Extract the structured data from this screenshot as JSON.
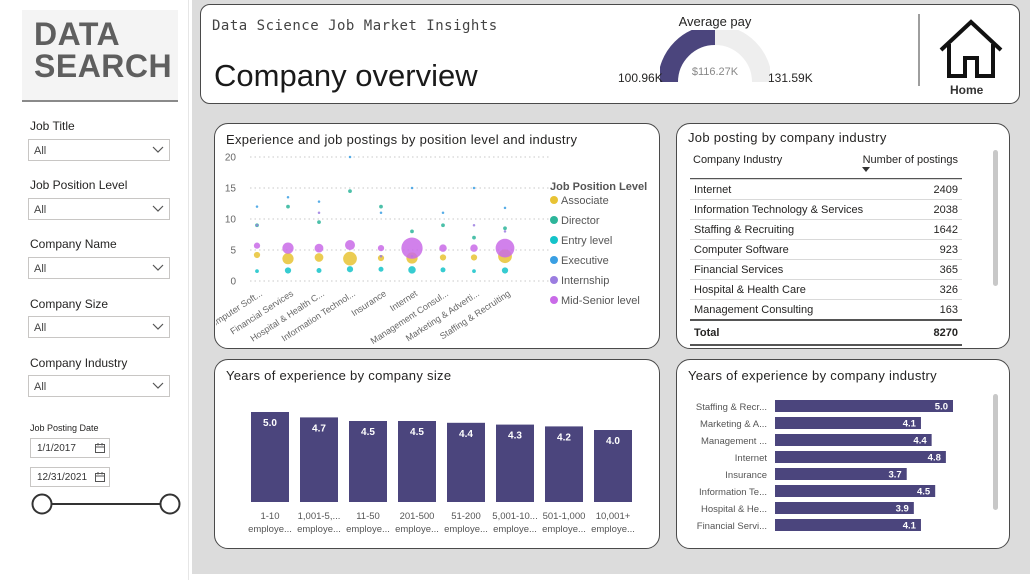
{
  "logo": {
    "line1": "DATA",
    "line2": "SEARCH"
  },
  "filters": [
    {
      "label": "Job Title",
      "value": "All"
    },
    {
      "label": "Job Position Level",
      "value": "All"
    },
    {
      "label": "Company Name",
      "value": "All"
    },
    {
      "label": "Company Size",
      "value": "All"
    },
    {
      "label": "Company Industry",
      "value": "All"
    }
  ],
  "date_filter": {
    "label": "Job Posting Date",
    "start": "1/1/2017",
    "end": "12/31/2021"
  },
  "header": {
    "subtitle": "Data Science Job Market Insights",
    "title": "Company overview",
    "gauge": {
      "label": "Average pay",
      "min": "100.96K",
      "max": "131.59K",
      "value": "$116.27K",
      "fraction": 0.5
    },
    "home_label": "Home"
  },
  "scatter": {
    "title": "Experience and job postings by position level and industry",
    "legend_title": "Job Position Level",
    "chart_data": {
      "type": "scatter",
      "categories": [
        "Computer Soft...",
        "Financial Services",
        "Hospital & Health C...",
        "Information Technol...",
        "Insurance",
        "Internet",
        "Management Consul...",
        "Marketing & Adverti...",
        "Staffing & Recruiting"
      ],
      "y_ticks": [
        "0",
        "5",
        "10",
        "15",
        "20"
      ],
      "ylim": [
        0,
        20
      ],
      "series": [
        {
          "name": "Associate",
          "color": "#E8C334",
          "points": [
            [
              0,
              4.2,
              5
            ],
            [
              1,
              3.6,
              9
            ],
            [
              2,
              3.8,
              7
            ],
            [
              3,
              3.6,
              11
            ],
            [
              4,
              3.7,
              5
            ],
            [
              5,
              3.7,
              9
            ],
            [
              6,
              3.8,
              5
            ],
            [
              7,
              3.8,
              5
            ],
            [
              8,
              4.0,
              11
            ]
          ]
        },
        {
          "name": "Director",
          "color": "#2DB59A",
          "points": [
            [
              0,
              9.0,
              3
            ],
            [
              1,
              12.0,
              3
            ],
            [
              2,
              9.5,
              3
            ],
            [
              3,
              14.5,
              3
            ],
            [
              4,
              12.0,
              3
            ],
            [
              5,
              8.0,
              3
            ],
            [
              6,
              9.0,
              3
            ],
            [
              7,
              7.0,
              3
            ],
            [
              8,
              8.5,
              3
            ]
          ]
        },
        {
          "name": "Entry level",
          "color": "#14C3C9",
          "points": [
            [
              0,
              1.6,
              3
            ],
            [
              1,
              1.7,
              5
            ],
            [
              2,
              1.7,
              4
            ],
            [
              3,
              1.9,
              5
            ],
            [
              4,
              1.9,
              4
            ],
            [
              5,
              1.8,
              6
            ],
            [
              6,
              1.8,
              4
            ],
            [
              7,
              1.6,
              3
            ],
            [
              8,
              1.7,
              5
            ]
          ]
        },
        {
          "name": "Executive",
          "color": "#3A9FE3",
          "points": [
            [
              0,
              12.0,
              2
            ],
            [
              1,
              13.5,
              2
            ],
            [
              2,
              12.8,
              2
            ],
            [
              3,
              20.0,
              2
            ],
            [
              4,
              11.0,
              2
            ],
            [
              5,
              15.0,
              2
            ],
            [
              6,
              11.0,
              2
            ],
            [
              7,
              15.0,
              2
            ],
            [
              8,
              11.8,
              2
            ]
          ]
        },
        {
          "name": "Internship",
          "color": "#9B7DE0",
          "points": [
            [
              0,
              9.0,
              2
            ],
            [
              2,
              11.0,
              2
            ],
            [
              4,
              4.0,
              2
            ],
            [
              5,
              4.0,
              2
            ],
            [
              7,
              9.0,
              2
            ],
            [
              8,
              8.0,
              2
            ]
          ]
        },
        {
          "name": "Mid-Senior level",
          "color": "#C96BE8",
          "points": [
            [
              0,
              5.7,
              5
            ],
            [
              1,
              5.3,
              9
            ],
            [
              2,
              5.3,
              7
            ],
            [
              3,
              5.8,
              8
            ],
            [
              4,
              5.3,
              5
            ],
            [
              5,
              5.3,
              17
            ],
            [
              6,
              5.3,
              6
            ],
            [
              7,
              5.3,
              6
            ],
            [
              8,
              5.3,
              15
            ]
          ]
        }
      ]
    }
  },
  "industry_table": {
    "title": "Job posting by company industry",
    "col1": "Company Industry",
    "col2": "Number of postings",
    "rows": [
      {
        "industry": "Internet",
        "postings": "2409"
      },
      {
        "industry": "Information Technology & Services",
        "postings": "2038"
      },
      {
        "industry": "Staffing & Recruiting",
        "postings": "1642"
      },
      {
        "industry": "Computer Software",
        "postings": "923"
      },
      {
        "industry": "Financial Services",
        "postings": "365"
      },
      {
        "industry": "Hospital & Health Care",
        "postings": "326"
      },
      {
        "industry": "Management Consulting",
        "postings": "163"
      }
    ],
    "total_label": "Total",
    "total_value": "8270"
  },
  "size_chart": {
    "title": "Years of experience by company size",
    "chart_data": {
      "type": "bar",
      "categories": [
        [
          "1-10",
          "employe..."
        ],
        [
          "1,001-5,...",
          "employe..."
        ],
        [
          "11-50",
          "employe..."
        ],
        [
          "201-500",
          "employe..."
        ],
        [
          "51-200",
          "employe..."
        ],
        [
          "5,001-10...",
          "employe..."
        ],
        [
          "501-1,000",
          "employe..."
        ],
        [
          "10,001+",
          "employe..."
        ]
      ],
      "values": [
        5.0,
        4.7,
        4.5,
        4.5,
        4.4,
        4.3,
        4.2,
        4.0
      ],
      "labels": [
        "5.0",
        "4.7",
        "4.5",
        "4.5",
        "4.4",
        "4.3",
        "4.2",
        "4.0"
      ],
      "color": "#4B457D"
    }
  },
  "industry_chart": {
    "title": "Years of experience by company industry",
    "chart_data": {
      "type": "bar",
      "categories": [
        "Staffing & Recr...",
        "Marketing & A...",
        "Management ...",
        "Internet",
        "Insurance",
        "Information Te...",
        "Hospital & He...",
        "Financial Servi..."
      ],
      "values": [
        5.0,
        4.1,
        4.4,
        4.8,
        3.7,
        4.5,
        3.9,
        4.1
      ],
      "labels": [
        "5.0",
        "4.1",
        "4.4",
        "4.8",
        "3.7",
        "4.5",
        "3.9",
        "4.1"
      ],
      "color": "#4B457D"
    }
  }
}
